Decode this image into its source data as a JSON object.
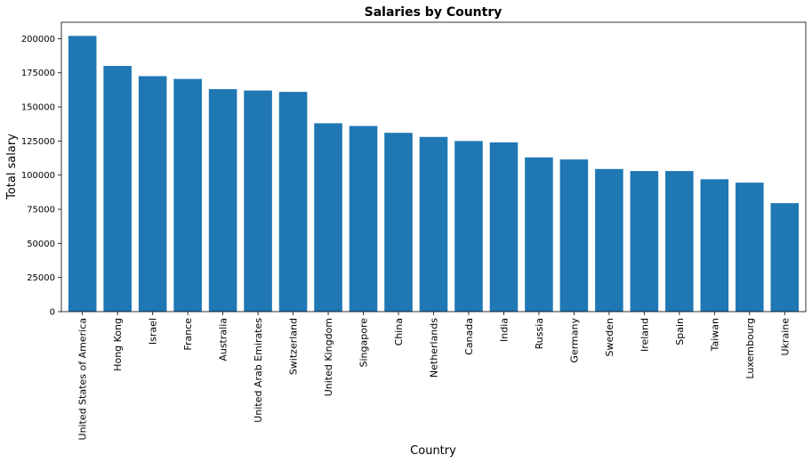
{
  "chart_data": {
    "type": "bar",
    "title": "Salaries by Country",
    "xlabel": "Country",
    "ylabel": "Total salary",
    "categories": [
      "United States of America",
      "Hong Kong",
      "Israel",
      "France",
      "Australia",
      "United Arab Emirates",
      "Switzerland",
      "United Kingdom",
      "Singapore",
      "China",
      "Netherlands",
      "Canada",
      "India",
      "Russia",
      "Germany",
      "Sweden",
      "Ireland",
      "Spain",
      "Taiwan",
      "Luxembourg",
      "Ukraine"
    ],
    "values": [
      202000,
      180000,
      172500,
      170500,
      163000,
      162000,
      161000,
      138000,
      136000,
      131000,
      128000,
      125000,
      124000,
      113000,
      111500,
      104500,
      103000,
      103000,
      97000,
      94500,
      79500
    ],
    "ylim": [
      0,
      212000
    ],
    "yticks": [
      0,
      25000,
      50000,
      75000,
      100000,
      125000,
      150000,
      175000,
      200000
    ],
    "ytick_labels": [
      "0",
      "25000",
      "50000",
      "75000",
      "100000",
      "125000",
      "150000",
      "175000",
      "200000"
    ],
    "bar_color": "#1f77b4",
    "grid": false,
    "legend": false
  }
}
